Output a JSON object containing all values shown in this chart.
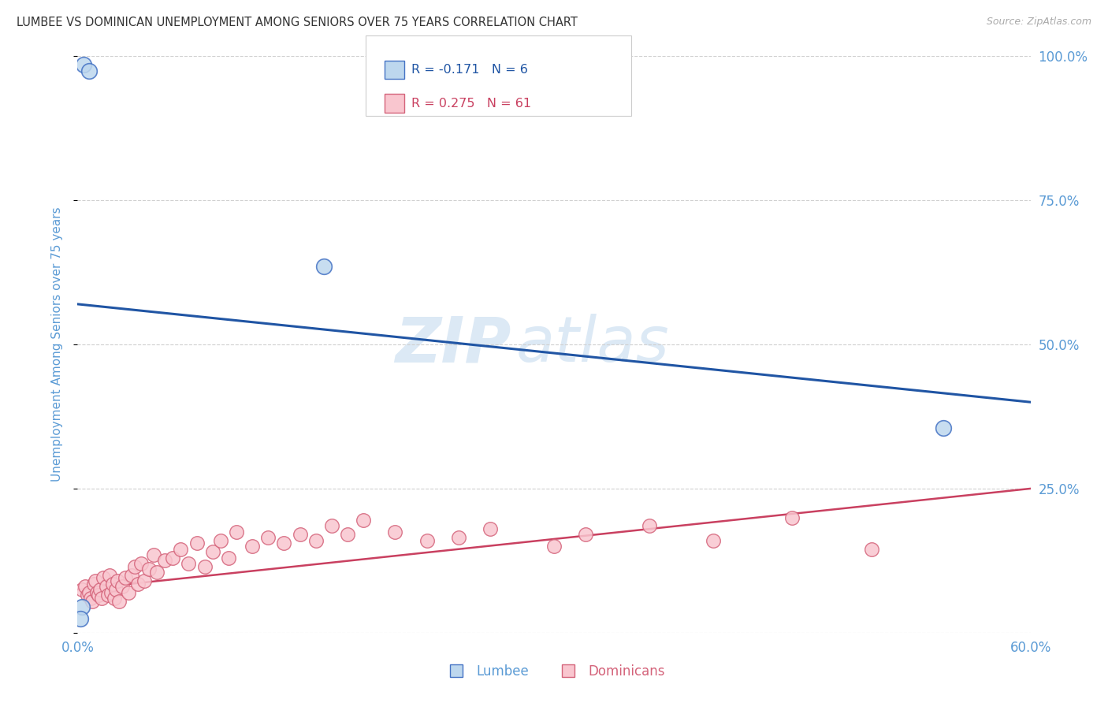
{
  "title": "LUMBEE VS DOMINICAN UNEMPLOYMENT AMONG SENIORS OVER 75 YEARS CORRELATION CHART",
  "source": "Source: ZipAtlas.com",
  "ylabel": "Unemployment Among Seniors over 75 years",
  "xlim": [
    0.0,
    0.6
  ],
  "ylim": [
    0.0,
    1.0
  ],
  "lumbee_x": [
    0.004,
    0.007,
    0.155,
    0.545,
    0.003,
    0.002
  ],
  "lumbee_y": [
    0.985,
    0.975,
    0.635,
    0.355,
    0.045,
    0.025
  ],
  "dominican_x": [
    0.003,
    0.005,
    0.006,
    0.007,
    0.008,
    0.009,
    0.01,
    0.011,
    0.012,
    0.013,
    0.014,
    0.015,
    0.016,
    0.018,
    0.019,
    0.02,
    0.021,
    0.022,
    0.023,
    0.024,
    0.025,
    0.026,
    0.028,
    0.03,
    0.032,
    0.034,
    0.036,
    0.038,
    0.04,
    0.042,
    0.045,
    0.048,
    0.05,
    0.055,
    0.06,
    0.065,
    0.07,
    0.075,
    0.08,
    0.085,
    0.09,
    0.095,
    0.1,
    0.11,
    0.12,
    0.13,
    0.14,
    0.15,
    0.16,
    0.17,
    0.18,
    0.2,
    0.22,
    0.24,
    0.26,
    0.3,
    0.32,
    0.36,
    0.4,
    0.45,
    0.5
  ],
  "dominican_y": [
    0.075,
    0.08,
    0.065,
    0.07,
    0.06,
    0.055,
    0.085,
    0.09,
    0.07,
    0.065,
    0.075,
    0.06,
    0.095,
    0.08,
    0.065,
    0.1,
    0.07,
    0.085,
    0.06,
    0.075,
    0.09,
    0.055,
    0.08,
    0.095,
    0.07,
    0.1,
    0.115,
    0.085,
    0.12,
    0.09,
    0.11,
    0.135,
    0.105,
    0.125,
    0.13,
    0.145,
    0.12,
    0.155,
    0.115,
    0.14,
    0.16,
    0.13,
    0.175,
    0.15,
    0.165,
    0.155,
    0.17,
    0.16,
    0.185,
    0.17,
    0.195,
    0.175,
    0.16,
    0.165,
    0.18,
    0.15,
    0.17,
    0.185,
    0.16,
    0.2,
    0.145
  ],
  "lumbee_color": "#bdd7ee",
  "lumbee_edge_color": "#4472c4",
  "dominican_color": "#f9c6cf",
  "dominican_edge_color": "#d4637a",
  "blue_line_color": "#2055a4",
  "pink_line_color": "#c94060",
  "axis_label_color": "#5b9bd5",
  "grid_color": "#d0d0d0",
  "background_color": "#ffffff",
  "watermark_color": "#dce9f5",
  "lumbee_R": -0.171,
  "lumbee_N": 6,
  "dominican_R": 0.275,
  "dominican_N": 61,
  "blue_trend_x0": 0.0,
  "blue_trend_y0": 0.57,
  "blue_trend_x1": 0.6,
  "blue_trend_y1": 0.4,
  "pink_trend_x0": 0.0,
  "pink_trend_y0": 0.075,
  "pink_trend_x1": 0.6,
  "pink_trend_y1": 0.25
}
